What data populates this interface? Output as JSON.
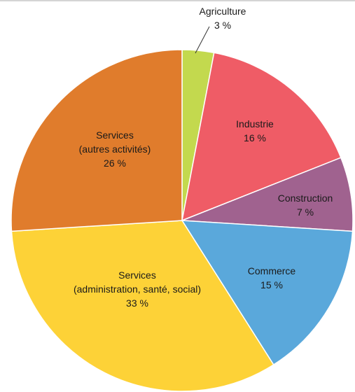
{
  "chart_data": {
    "type": "pie",
    "slices": [
      {
        "label": "Agriculture",
        "value_label": "3 %",
        "value": 3,
        "color": "#c3d94e"
      },
      {
        "label": "Industrie",
        "value_label": "16 %",
        "value": 16,
        "color": "#ef5c66"
      },
      {
        "label": "Construction",
        "value_label": "7 %",
        "value": 7,
        "color": "#a0628f"
      },
      {
        "label": "Commerce",
        "value_label": "15 %",
        "value": 15,
        "color": "#5aa8db"
      },
      {
        "label": "Services\n(administration, santé, social)",
        "value_label": "33 %",
        "value": 33,
        "color": "#fdd237"
      },
      {
        "label": "Services\n(autres activités)",
        "value_label": "26 %",
        "value": 26,
        "color": "#e07c2c"
      }
    ],
    "start_at": "top",
    "direction": "clockwise"
  }
}
